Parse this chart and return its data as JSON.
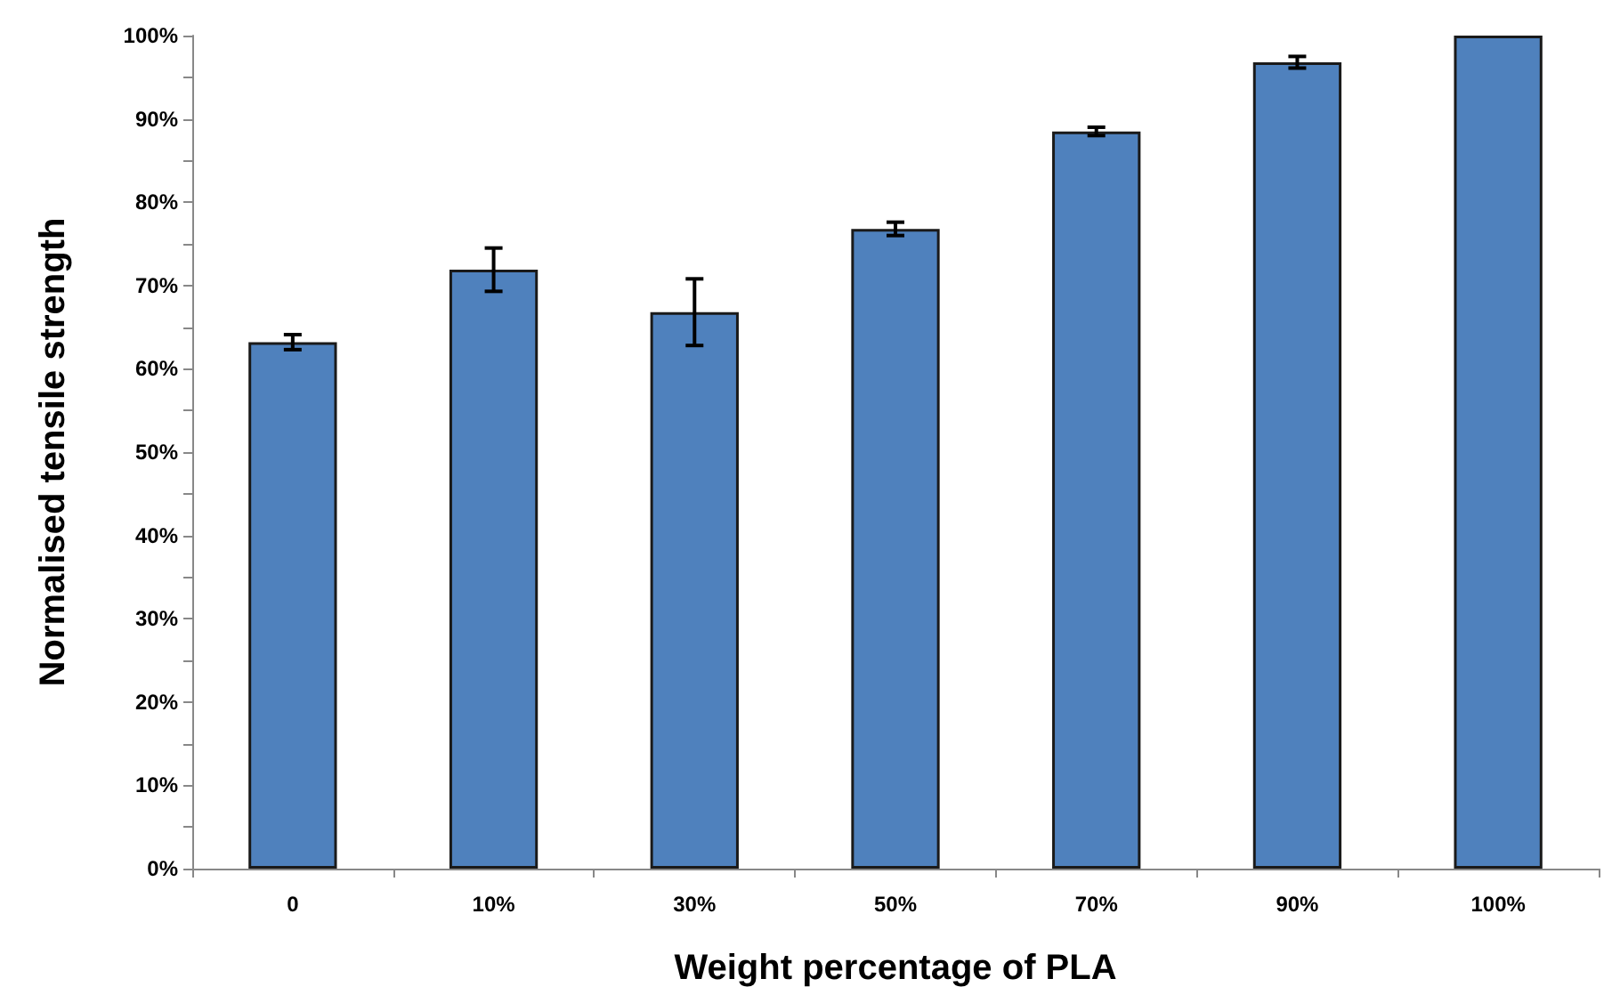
{
  "chart_data": {
    "type": "bar",
    "xlabel": "Weight percentage of PLA",
    "ylabel": "Normalised tensile strength",
    "categories": [
      "0",
      "10%",
      "30%",
      "50%",
      "70%",
      "90%",
      "100%"
    ],
    "values": [
      63.2,
      71.9,
      66.8,
      76.8,
      88.5,
      96.8,
      100
    ],
    "errors": [
      0.9,
      2.6,
      4,
      0.8,
      0.5,
      0.7,
      null
    ],
    "color": "#4f81bd",
    "ylim": [
      0,
      100
    ],
    "yticks": [
      {
        "value": 0,
        "label": "0%"
      },
      {
        "value": 5,
        "label": null
      },
      {
        "value": 10,
        "label": "10%"
      },
      {
        "value": 15,
        "label": null
      },
      {
        "value": 20,
        "label": "20%"
      },
      {
        "value": 25,
        "label": null
      },
      {
        "value": 30,
        "label": "30%"
      },
      {
        "value": 35,
        "label": null
      },
      {
        "value": 40,
        "label": "40%"
      },
      {
        "value": 45,
        "label": null
      },
      {
        "value": 50,
        "label": "50%"
      },
      {
        "value": 55,
        "label": null
      },
      {
        "value": 60,
        "label": "60%"
      },
      {
        "value": 65,
        "label": null
      },
      {
        "value": 70,
        "label": "70%"
      },
      {
        "value": 75,
        "label": null
      },
      {
        "value": 80,
        "label": "80%"
      },
      {
        "value": 85,
        "label": null
      },
      {
        "value": 90,
        "label": "90%"
      },
      {
        "value": 95,
        "label": null
      },
      {
        "value": 100,
        "label": "100%"
      }
    ],
    "grid": false
  }
}
